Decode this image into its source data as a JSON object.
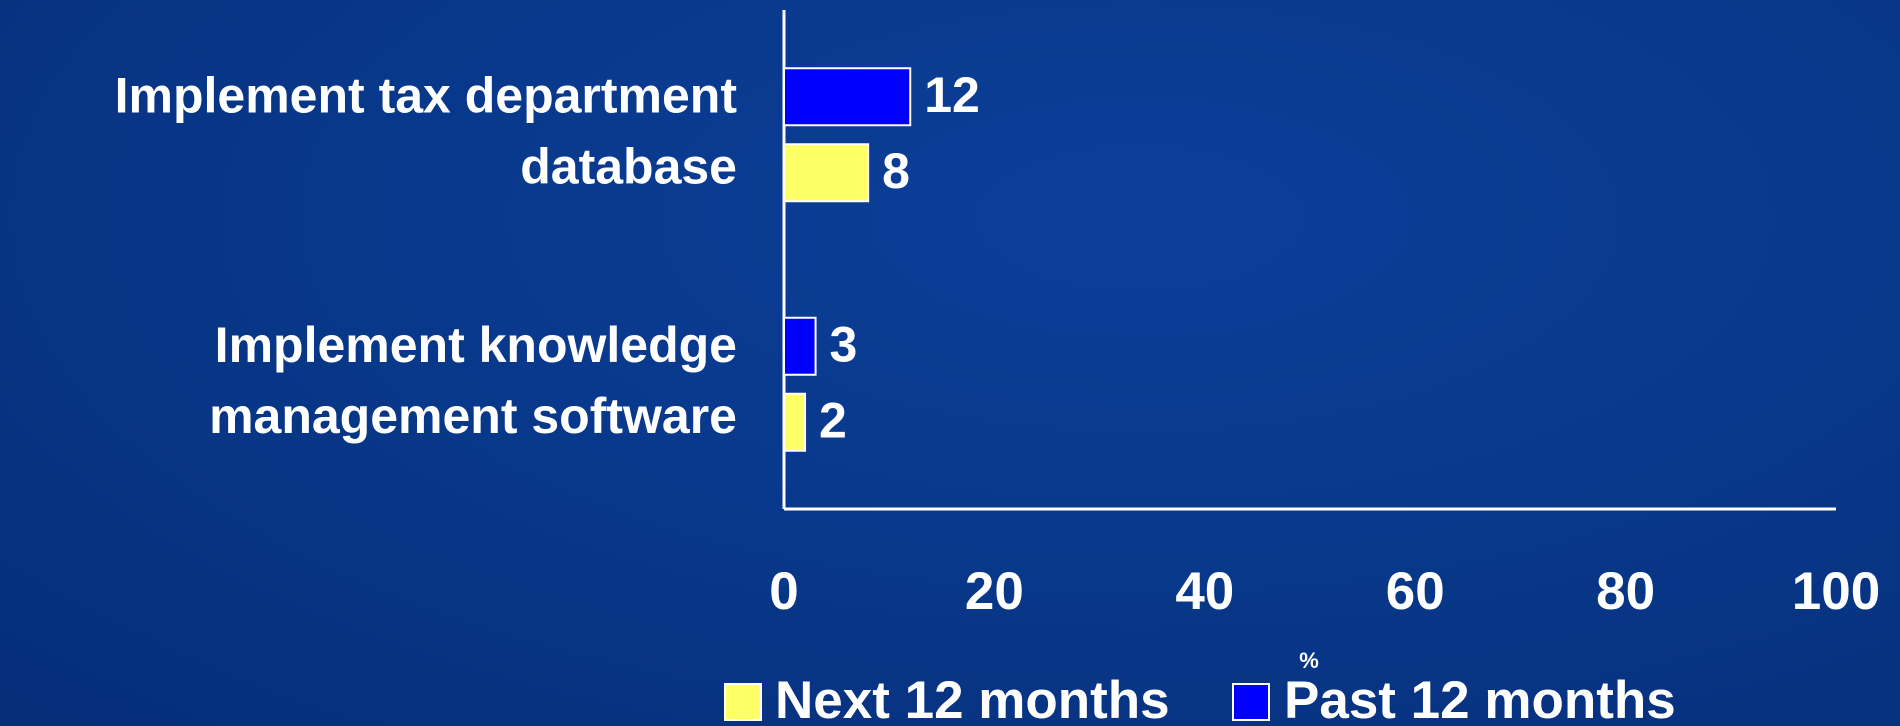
{
  "chart_data": {
    "type": "hbar",
    "categories": [
      "Implement tax department database",
      "Implement knowledge management software"
    ],
    "series": [
      {
        "name": "Next 12 months",
        "color": "#ffff66",
        "values": [
          8,
          2
        ]
      },
      {
        "name": "Past 12 months",
        "color": "#0000ff",
        "values": [
          12,
          3
        ]
      }
    ],
    "xlabel": "%",
    "xlim": [
      0,
      100
    ],
    "xticks": [
      0,
      20,
      40,
      60,
      80,
      100
    ],
    "legend": "bottom"
  }
}
